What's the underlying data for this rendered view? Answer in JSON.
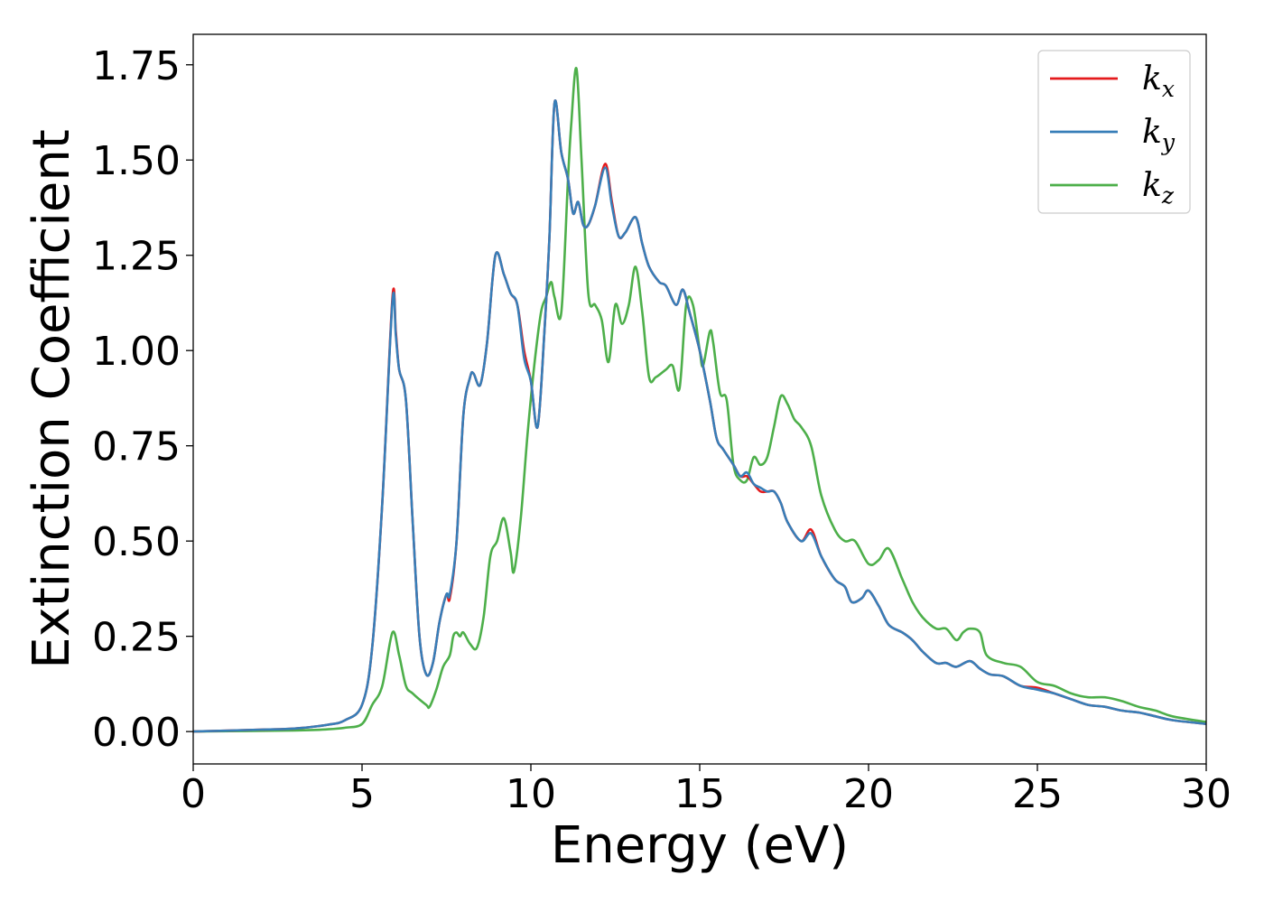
{
  "chart_data": {
    "type": "line",
    "title": "",
    "xlabel": "Energy (eV)",
    "ylabel": "Extinction Coefficient",
    "xlim": [
      0,
      30
    ],
    "ylim": [
      -0.085,
      1.83
    ],
    "xticks": [
      0,
      5,
      10,
      15,
      20,
      25,
      30
    ],
    "xtick_labels": [
      "0",
      "5",
      "10",
      "15",
      "20",
      "25",
      "30"
    ],
    "yticks": [
      0,
      0.25,
      0.5,
      0.75,
      1.0,
      1.25,
      1.5,
      1.75
    ],
    "ytick_labels": [
      "0.00",
      "0.25",
      "0.50",
      "0.75",
      "1.00",
      "1.25",
      "1.50",
      "1.75"
    ],
    "grid": false,
    "legend_position": "top-right",
    "series": [
      {
        "name": "k_x",
        "label_base": "k",
        "label_sub": "x",
        "color": "#e41a1c",
        "x": [
          0,
          2,
          3,
          4,
          4.5,
          5,
          5.3,
          5.6,
          5.9,
          6.0,
          6.1,
          6.3,
          6.5,
          6.7,
          6.9,
          7.1,
          7.3,
          7.5,
          7.6,
          7.8,
          8.0,
          8.2,
          8.3,
          8.5,
          8.7,
          8.95,
          9.2,
          9.4,
          9.6,
          9.8,
          10.0,
          10.2,
          10.4,
          10.55,
          10.7,
          10.9,
          11.1,
          11.25,
          11.4,
          11.55,
          11.7,
          11.9,
          12.2,
          12.4,
          12.6,
          12.8,
          13.1,
          13.3,
          13.5,
          13.8,
          14.0,
          14.3,
          14.5,
          14.7,
          15.0,
          15.3,
          15.5,
          15.7,
          16.0,
          16.2,
          16.4,
          16.6,
          16.8,
          17.0,
          17.2,
          17.4,
          17.6,
          18.0,
          18.3,
          18.6,
          19.0,
          19.3,
          19.5,
          19.8,
          20.0,
          20.3,
          20.6,
          21.0,
          21.3,
          21.6,
          22.0,
          22.3,
          22.6,
          23.0,
          23.3,
          23.6,
          24.0,
          24.5,
          25.0,
          25.5,
          26.0,
          26.5,
          27.0,
          27.5,
          28.0,
          28.5,
          29.0,
          30.0
        ],
        "y": [
          0,
          0.005,
          0.008,
          0.018,
          0.03,
          0.07,
          0.22,
          0.6,
          1.14,
          1.05,
          0.95,
          0.87,
          0.55,
          0.25,
          0.15,
          0.18,
          0.29,
          0.36,
          0.35,
          0.5,
          0.83,
          0.93,
          0.94,
          0.91,
          1.02,
          1.25,
          1.2,
          1.15,
          1.12,
          1.0,
          0.92,
          0.8,
          1.05,
          1.3,
          1.65,
          1.52,
          1.45,
          1.36,
          1.39,
          1.33,
          1.33,
          1.38,
          1.49,
          1.39,
          1.3,
          1.31,
          1.35,
          1.28,
          1.22,
          1.18,
          1.17,
          1.12,
          1.16,
          1.1,
          1.0,
          0.87,
          0.77,
          0.74,
          0.7,
          0.67,
          0.67,
          0.65,
          0.63,
          0.63,
          0.63,
          0.6,
          0.55,
          0.5,
          0.53,
          0.46,
          0.4,
          0.38,
          0.34,
          0.35,
          0.37,
          0.33,
          0.28,
          0.26,
          0.24,
          0.21,
          0.18,
          0.18,
          0.17,
          0.185,
          0.165,
          0.15,
          0.145,
          0.12,
          0.115,
          0.1,
          0.085,
          0.07,
          0.065,
          0.055,
          0.05,
          0.04,
          0.03,
          0.02
        ]
      },
      {
        "name": "k_y",
        "label_base": "k",
        "label_sub": "y",
        "color": "#377eb8",
        "x": [
          0,
          2,
          3,
          4,
          4.5,
          5,
          5.3,
          5.6,
          5.9,
          6.0,
          6.1,
          6.3,
          6.5,
          6.7,
          6.9,
          7.1,
          7.3,
          7.5,
          7.6,
          7.8,
          8.0,
          8.2,
          8.3,
          8.5,
          8.7,
          8.95,
          9.2,
          9.4,
          9.6,
          9.8,
          10.0,
          10.2,
          10.4,
          10.55,
          10.7,
          10.9,
          11.1,
          11.25,
          11.4,
          11.55,
          11.7,
          11.9,
          12.2,
          12.4,
          12.6,
          12.8,
          13.1,
          13.3,
          13.5,
          13.8,
          14.0,
          14.3,
          14.5,
          14.7,
          15.0,
          15.3,
          15.5,
          15.7,
          16.0,
          16.2,
          16.4,
          16.6,
          16.8,
          17.0,
          17.2,
          17.4,
          17.6,
          18.0,
          18.3,
          18.6,
          19.0,
          19.3,
          19.5,
          19.8,
          20.0,
          20.3,
          20.6,
          21.0,
          21.3,
          21.6,
          22.0,
          22.3,
          22.6,
          23.0,
          23.3,
          23.6,
          24.0,
          24.5,
          25.0,
          25.5,
          26.0,
          26.5,
          27.0,
          27.5,
          28.0,
          28.5,
          29.0,
          30.0
        ],
        "y": [
          0,
          0.005,
          0.008,
          0.018,
          0.03,
          0.07,
          0.22,
          0.6,
          1.13,
          1.04,
          0.95,
          0.87,
          0.55,
          0.25,
          0.15,
          0.18,
          0.29,
          0.36,
          0.36,
          0.5,
          0.83,
          0.93,
          0.94,
          0.91,
          1.02,
          1.25,
          1.2,
          1.15,
          1.12,
          0.98,
          0.92,
          0.8,
          1.05,
          1.3,
          1.65,
          1.52,
          1.45,
          1.36,
          1.39,
          1.33,
          1.33,
          1.38,
          1.48,
          1.38,
          1.3,
          1.31,
          1.35,
          1.28,
          1.22,
          1.18,
          1.17,
          1.12,
          1.16,
          1.1,
          1.0,
          0.87,
          0.77,
          0.74,
          0.7,
          0.67,
          0.68,
          0.65,
          0.64,
          0.63,
          0.63,
          0.6,
          0.55,
          0.5,
          0.52,
          0.46,
          0.4,
          0.38,
          0.34,
          0.35,
          0.37,
          0.33,
          0.28,
          0.26,
          0.24,
          0.21,
          0.18,
          0.18,
          0.17,
          0.185,
          0.165,
          0.15,
          0.145,
          0.12,
          0.11,
          0.1,
          0.085,
          0.07,
          0.065,
          0.055,
          0.05,
          0.04,
          0.03,
          0.02
        ]
      },
      {
        "name": "k_z",
        "label_base": "k",
        "label_sub": "z",
        "color": "#4daf4a",
        "x": [
          0,
          3,
          4,
          4.5,
          5.0,
          5.3,
          5.6,
          5.9,
          6.1,
          6.3,
          6.5,
          6.9,
          7.0,
          7.2,
          7.4,
          7.6,
          7.7,
          7.8,
          7.9,
          8.0,
          8.2,
          8.4,
          8.6,
          8.8,
          9.0,
          9.2,
          9.4,
          9.5,
          9.7,
          9.9,
          10.1,
          10.3,
          10.45,
          10.6,
          10.7,
          10.9,
          11.1,
          11.2,
          11.35,
          11.5,
          11.7,
          11.9,
          12.1,
          12.3,
          12.5,
          12.7,
          12.9,
          13.1,
          13.3,
          13.5,
          13.7,
          14.0,
          14.2,
          14.4,
          14.6,
          14.8,
          15.0,
          15.1,
          15.3,
          15.4,
          15.6,
          15.8,
          16.0,
          16.2,
          16.4,
          16.6,
          16.8,
          17.0,
          17.2,
          17.4,
          17.6,
          17.8,
          18.0,
          18.3,
          18.6,
          19.0,
          19.3,
          19.6,
          20.0,
          20.3,
          20.6,
          21.0,
          21.3,
          21.6,
          22.0,
          22.3,
          22.6,
          22.8,
          23.0,
          23.3,
          23.5,
          24.0,
          24.5,
          25.0,
          25.5,
          26.0,
          26.5,
          27.0,
          27.5,
          28.0,
          28.5,
          29.0,
          30.0
        ],
        "y": [
          0,
          0.003,
          0.006,
          0.01,
          0.02,
          0.07,
          0.12,
          0.26,
          0.2,
          0.12,
          0.1,
          0.07,
          0.065,
          0.11,
          0.17,
          0.2,
          0.25,
          0.26,
          0.25,
          0.26,
          0.23,
          0.22,
          0.3,
          0.46,
          0.5,
          0.56,
          0.47,
          0.42,
          0.56,
          0.78,
          0.96,
          1.1,
          1.14,
          1.18,
          1.14,
          1.1,
          1.45,
          1.6,
          1.74,
          1.5,
          1.15,
          1.12,
          1.08,
          0.97,
          1.12,
          1.07,
          1.12,
          1.22,
          1.1,
          0.93,
          0.93,
          0.95,
          0.96,
          0.9,
          1.12,
          1.12,
          1.0,
          0.96,
          1.05,
          1.02,
          0.89,
          0.87,
          0.7,
          0.66,
          0.66,
          0.72,
          0.7,
          0.72,
          0.8,
          0.88,
          0.86,
          0.82,
          0.8,
          0.75,
          0.62,
          0.53,
          0.5,
          0.5,
          0.44,
          0.45,
          0.48,
          0.4,
          0.34,
          0.3,
          0.27,
          0.27,
          0.24,
          0.26,
          0.27,
          0.26,
          0.2,
          0.18,
          0.17,
          0.13,
          0.12,
          0.1,
          0.09,
          0.09,
          0.08,
          0.065,
          0.055,
          0.04,
          0.025
        ]
      }
    ]
  }
}
